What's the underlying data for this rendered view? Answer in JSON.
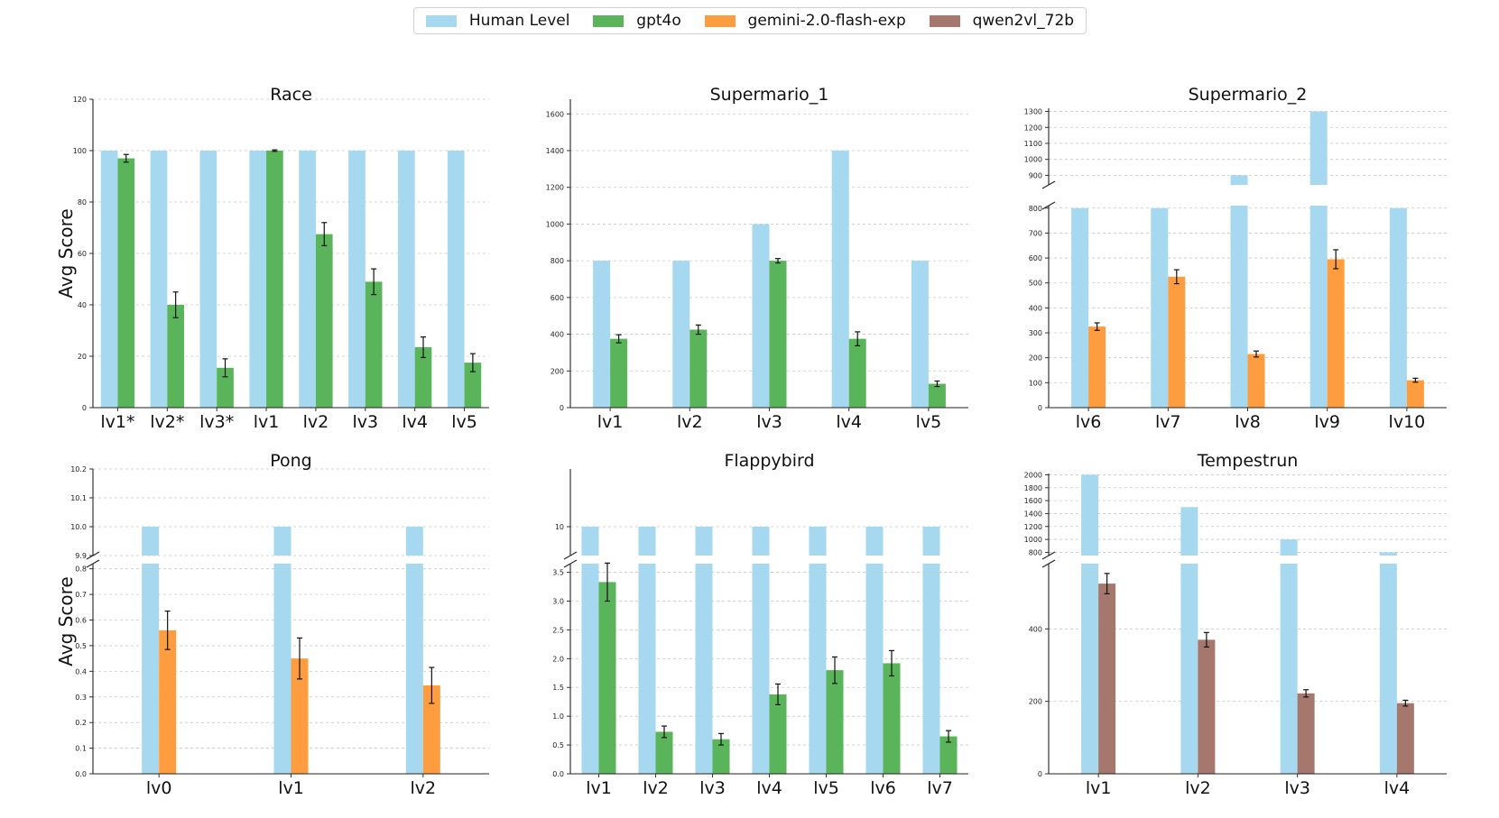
{
  "legend": [
    {
      "label": "Human Level",
      "color": "#a6d8ef"
    },
    {
      "label": "gpt4o",
      "color": "#5ab55a"
    },
    {
      "label": "gemini-2.0-flash-exp",
      "color": "#fe9d3f"
    },
    {
      "label": "qwen2vl_72b",
      "color": "#a5776d"
    }
  ],
  "ylabel": "Avg Score",
  "chart_data": [
    {
      "type": "bar",
      "title": "Race",
      "model": "gpt4o",
      "categories": [
        "lv1*",
        "lv2*",
        "lv3*",
        "lv1",
        "lv2",
        "lv3",
        "lv4",
        "lv5"
      ],
      "series": [
        {
          "name": "Human Level",
          "values": [
            100,
            100,
            100,
            100,
            100,
            100,
            100,
            100
          ]
        },
        {
          "name": "gpt4o",
          "values": [
            97,
            40,
            15.5,
            100,
            67.5,
            49,
            23.5,
            17.5
          ],
          "errors": [
            1.5,
            5,
            3.5,
            0.3,
            4.5,
            5,
            4,
            3.5
          ]
        }
      ],
      "ylim": [
        0,
        120
      ],
      "yticks": [
        0,
        20,
        40,
        60,
        80,
        100,
        120
      ],
      "ylabel": "Avg Score"
    },
    {
      "type": "bar",
      "title": "Supermario_1",
      "model": "gpt4o",
      "categories": [
        "lv1",
        "lv2",
        "lv3",
        "lv4",
        "lv5"
      ],
      "series": [
        {
          "name": "Human Level",
          "values": [
            800,
            800,
            1000,
            1400,
            800
          ]
        },
        {
          "name": "gpt4o",
          "values": [
            375,
            425,
            800,
            375,
            130
          ],
          "errors": [
            22,
            25,
            12,
            38,
            15
          ]
        }
      ],
      "ylim": [
        0,
        1680
      ],
      "yticks": [
        0,
        200,
        400,
        600,
        800,
        1000,
        1200,
        1400,
        1600
      ]
    },
    {
      "type": "bar",
      "title": "Supermario_2",
      "model": "gemini-2.0-flash-exp",
      "categories": [
        "lv6",
        "lv7",
        "lv8",
        "lv9",
        "lv10"
      ],
      "series": [
        {
          "name": "Human Level",
          "values": [
            800,
            800,
            900,
            1300,
            800
          ]
        },
        {
          "name": "gemini-2.0-flash-exp",
          "values": [
            325,
            525,
            215,
            595,
            110
          ],
          "errors": [
            15,
            28,
            12,
            38,
            8
          ]
        }
      ],
      "broken_axis": {
        "lower": [
          0,
          810
        ],
        "upper": [
          840,
          1320
        ]
      },
      "yticks_lower": [
        0,
        100,
        200,
        300,
        400,
        500,
        600,
        700,
        800
      ],
      "yticks_upper": [
        900,
        1000,
        1100,
        1200,
        1300
      ]
    },
    {
      "type": "bar",
      "title": "Pong",
      "model": "gemini-2.0-flash-exp",
      "categories": [
        "lv0",
        "lv1",
        "lv2"
      ],
      "series": [
        {
          "name": "Human Level",
          "values": [
            10.0,
            10.0,
            10.0
          ]
        },
        {
          "name": "gemini-2.0-flash-exp",
          "values": [
            0.56,
            0.45,
            0.345
          ],
          "errors": [
            0.075,
            0.08,
            0.07
          ]
        }
      ],
      "broken_axis": {
        "lower": [
          0,
          0.82
        ],
        "upper": [
          9.9,
          10.2
        ]
      },
      "yticks_lower": [
        0.0,
        0.1,
        0.2,
        0.3,
        0.4,
        0.5,
        0.6,
        0.7,
        0.8
      ],
      "yticks_upper": [
        9.9,
        10.0,
        10.1,
        10.2
      ],
      "ylabel": "Avg Score"
    },
    {
      "type": "bar",
      "title": "Flappybird",
      "model": "gpt4o",
      "categories": [
        "lv1",
        "lv2",
        "lv3",
        "lv4",
        "lv5",
        "lv6",
        "lv7"
      ],
      "series": [
        {
          "name": "Human Level",
          "values": [
            10.0,
            10.0,
            10.0,
            10.0,
            10.0,
            10.0,
            10.0
          ]
        },
        {
          "name": "gpt4o",
          "values": [
            3.33,
            0.73,
            0.6,
            1.38,
            1.8,
            1.92,
            0.65
          ],
          "errors": [
            0.33,
            0.1,
            0.1,
            0.18,
            0.23,
            0.22,
            0.1
          ]
        }
      ],
      "broken_axis": {
        "lower": [
          0,
          3.65
        ],
        "upper": [
          9.9,
          10.2
        ]
      },
      "yticks_lower": [
        0.0,
        0.5,
        1.0,
        1.5,
        2.0,
        2.5,
        3.0,
        3.5
      ],
      "yticks_upper": [
        10.0
      ]
    },
    {
      "type": "bar",
      "title": "Tempestrun",
      "model": "qwen2vl_72b",
      "categories": [
        "lv1",
        "lv2",
        "lv3",
        "lv4"
      ],
      "series": [
        {
          "name": "Human Level",
          "values": [
            2000,
            1500,
            1000,
            800
          ]
        },
        {
          "name": "qwen2vl_72b",
          "values": [
            525,
            370,
            222,
            195
          ],
          "errors": [
            28,
            20,
            10,
            8
          ]
        }
      ],
      "broken_axis": {
        "lower": [
          0,
          580
        ],
        "upper": [
          750,
          2020
        ]
      },
      "yticks_lower": [
        0,
        200,
        400
      ],
      "yticks_upper": [
        800,
        1000,
        1200,
        1400,
        1600,
        1800,
        2000
      ]
    }
  ]
}
